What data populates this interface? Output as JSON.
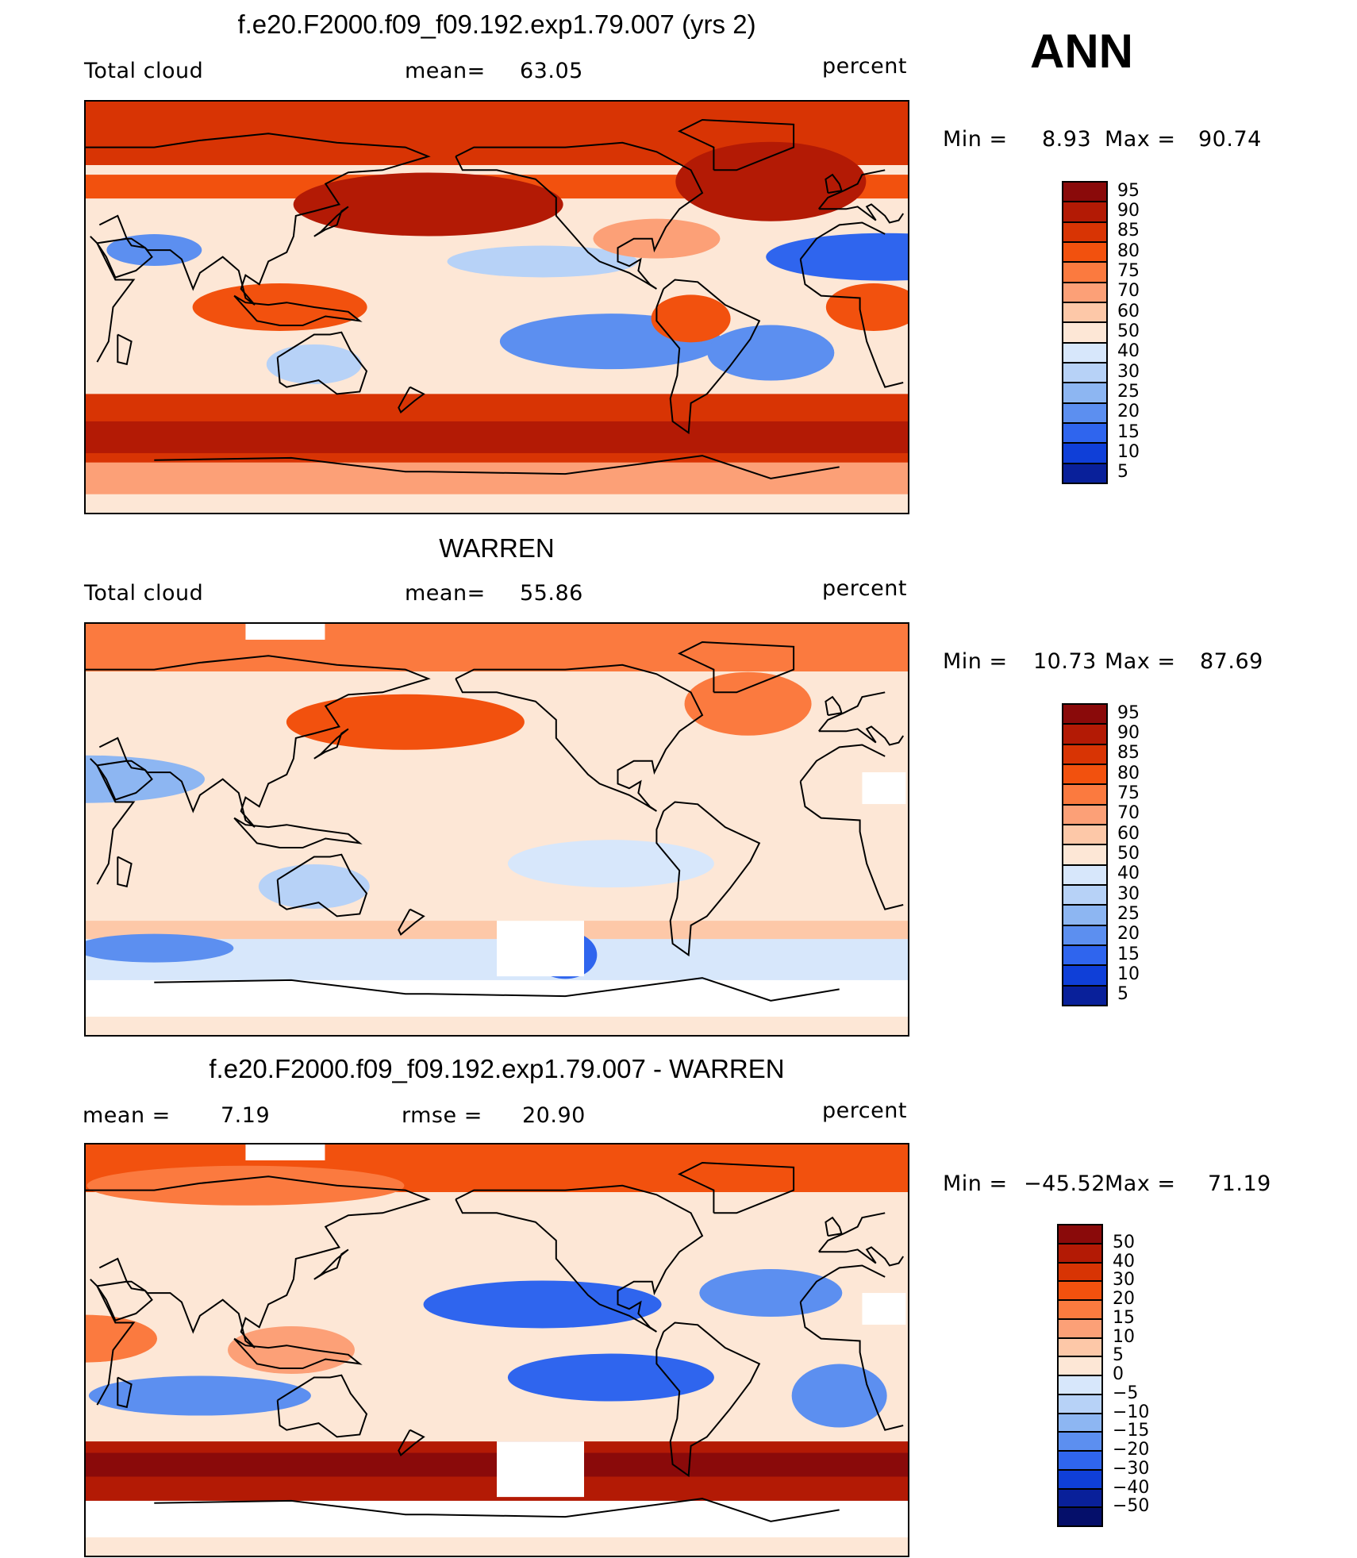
{
  "season": "ANN",
  "panels": [
    {
      "title": "f.e20.F2000.f09_f09.192.exp1.79.007 (yrs 2)",
      "left_label": "Total cloud",
      "center_label": "mean=",
      "center_value": "63.05",
      "units": "percent",
      "range_text": {
        "min_label": "Min  =",
        "min_value": "8.93",
        "max_label": "Max  =",
        "max_value": "90.74"
      },
      "colorbar_labels": [
        "95",
        "90",
        "85",
        "80",
        "75",
        "70",
        "60",
        "50",
        "40",
        "30",
        "25",
        "20",
        "15",
        "10",
        "5"
      ],
      "colorbar_colors": [
        "#8a0a0a",
        "#b31a05",
        "#d83404",
        "#f2510e",
        "#fb7a3f",
        "#fca077",
        "#fdc8a8",
        "#fde7d6",
        "#d7e7fb",
        "#b7d2f7",
        "#8db6f2",
        "#5c8ff0",
        "#2f65ee",
        "#0f3fd8",
        "#09209a"
      ],
      "field": "model"
    },
    {
      "title": "WARREN",
      "left_label": "Total cloud",
      "center_label": "mean=",
      "center_value": "55.86",
      "units": "percent",
      "range_text": {
        "min_label": "Min  =",
        "min_value": "10.73",
        "max_label": "Max  =",
        "max_value": "87.69"
      },
      "colorbar_labels": [
        "95",
        "90",
        "85",
        "80",
        "75",
        "70",
        "60",
        "50",
        "40",
        "30",
        "25",
        "20",
        "15",
        "10",
        "5"
      ],
      "colorbar_colors": [
        "#8a0a0a",
        "#b31a05",
        "#d83404",
        "#f2510e",
        "#fb7a3f",
        "#fca077",
        "#fdc8a8",
        "#fde7d6",
        "#d7e7fb",
        "#b7d2f7",
        "#8db6f2",
        "#5c8ff0",
        "#2f65ee",
        "#0f3fd8",
        "#09209a"
      ],
      "field": "obs"
    },
    {
      "title": "f.e20.F2000.f09_f09.192.exp1.79.007 - WARREN",
      "left_label": "mean =",
      "left_value": "7.19",
      "center_label": "rmse =",
      "center_value": "20.90",
      "units": "percent",
      "range_text": {
        "min_label": "Min  =",
        "min_value": "−45.52",
        "max_label": "Max  =",
        "max_value": "71.19"
      },
      "colorbar_labels": [
        "50",
        "40",
        "30",
        "20",
        "15",
        "10",
        "5",
        "0",
        "−5",
        "−10",
        "−15",
        "−20",
        "−30",
        "−40",
        "−50"
      ],
      "colorbar_colors": [
        "#8a0a0a",
        "#b31a05",
        "#d83404",
        "#f2510e",
        "#fb7a3f",
        "#fca077",
        "#fdc8a8",
        "#fde7d6",
        "#d7e7fb",
        "#b7d2f7",
        "#8db6f2",
        "#5c8ff0",
        "#2f65ee",
        "#0f3fd8",
        "#09209a",
        "#050f6a"
      ],
      "field": "diff"
    }
  ]
}
